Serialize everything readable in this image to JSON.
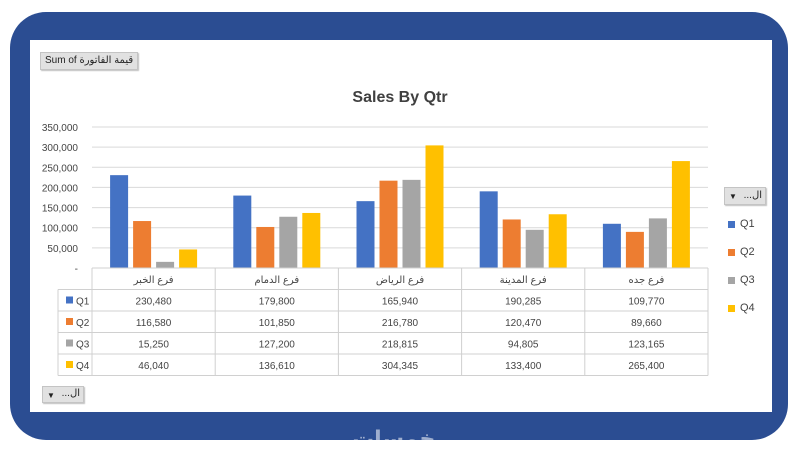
{
  "pivot": {
    "values_field_label": "Sum of قيمة الفاتورة",
    "series_field_label": "ال...",
    "axis_field_label": "ال..."
  },
  "watermark_text": "خمسات",
  "chart_data": {
    "type": "bar",
    "title": "Sales By Qtr",
    "categories": [
      "فرع الخبر",
      "فرع الدمام",
      "فرع الرياض",
      "فرع المدينة",
      "فرع جده"
    ],
    "series": [
      {
        "name": "Q1",
        "color": "#4472c4",
        "values": [
          230480,
          179800,
          165940,
          190285,
          109770
        ],
        "labels": [
          "230,480",
          "179,800",
          "165,940",
          "190,285",
          "109,770"
        ]
      },
      {
        "name": "Q2",
        "color": "#ed7d31",
        "values": [
          116580,
          101850,
          216780,
          120470,
          89660
        ],
        "labels": [
          "116,580",
          "101,850",
          "216,780",
          "120,470",
          "89,660"
        ]
      },
      {
        "name": "Q3",
        "color": "#a5a5a5",
        "values": [
          15250,
          127200,
          218815,
          94805,
          123165
        ],
        "labels": [
          "15,250",
          "127,200",
          "218,815",
          "94,805",
          "123,165"
        ]
      },
      {
        "name": "Q4",
        "color": "#ffc000",
        "values": [
          46040,
          136610,
          304345,
          133400,
          265400
        ],
        "labels": [
          "46,040",
          "136,610",
          "304,345",
          "133,400",
          "265,400"
        ]
      }
    ],
    "ylim": [
      0,
      350000
    ],
    "yticks": [
      {
        "value": 0,
        "label": "-"
      },
      {
        "value": 50000,
        "label": "50,000"
      },
      {
        "value": 100000,
        "label": "100,000"
      },
      {
        "value": 150000,
        "label": "150,000"
      },
      {
        "value": 200000,
        "label": "200,000"
      },
      {
        "value": 250000,
        "label": "250,000"
      },
      {
        "value": 300000,
        "label": "300,000"
      },
      {
        "value": 350000,
        "label": "350,000"
      }
    ],
    "grid": true,
    "legend": "right",
    "data_table": true
  }
}
